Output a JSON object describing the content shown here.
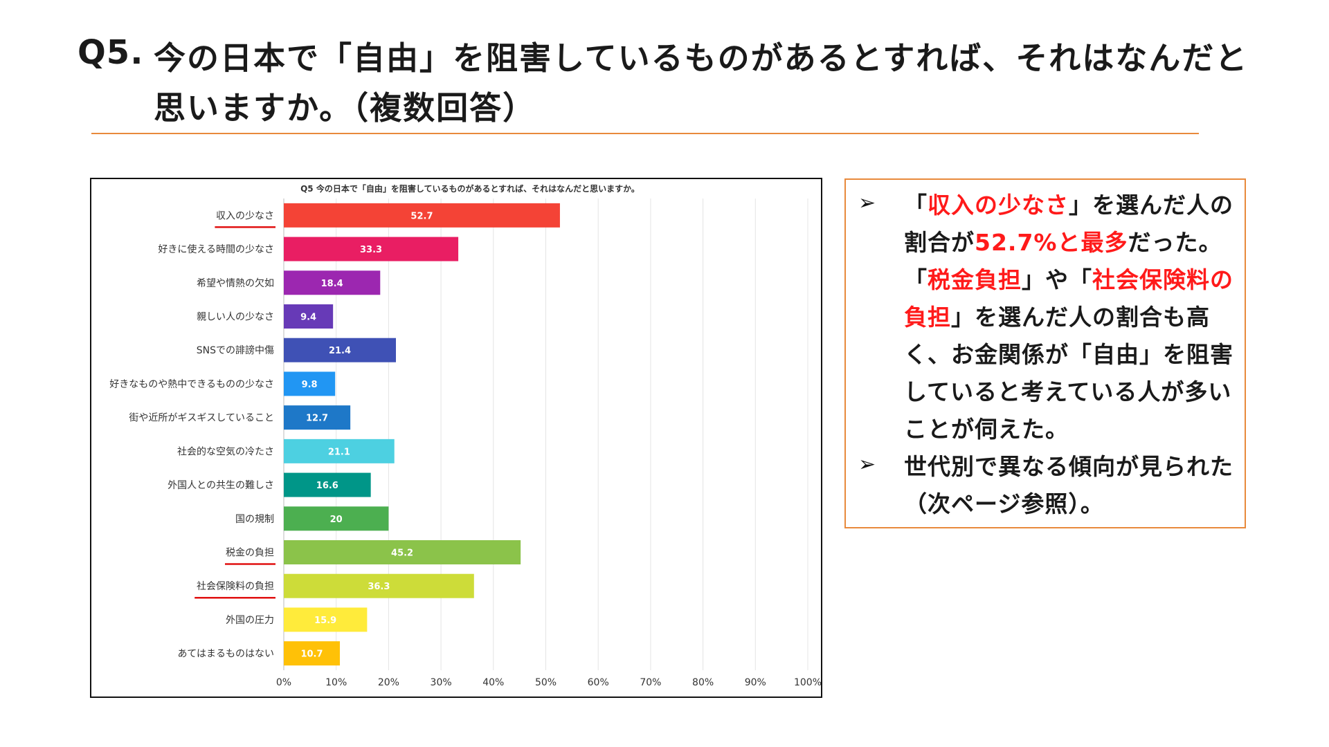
{
  "header": {
    "question_number": "Q5.",
    "question_text": "今の日本で「自由」を阻害しているものがあるとすれば、それはなんだと思いますか。（複数回答）"
  },
  "chart_data": {
    "type": "bar",
    "orientation": "horizontal",
    "title": "Q5 今の日本で「自由」を阻害しているものがあるとすれば、それはなんだと思いますか。",
    "xlabel": "",
    "ylabel": "",
    "xlim": [
      0,
      100
    ],
    "grid": true,
    "ticks": [
      "0%",
      "10%",
      "20%",
      "30%",
      "40%",
      "50%",
      "60%",
      "70%",
      "80%",
      "90%",
      "100%"
    ],
    "tick_values": [
      0,
      10,
      20,
      30,
      40,
      50,
      60,
      70,
      80,
      90,
      100
    ],
    "categories": [
      "収入の少なさ",
      "好きに使える時間の少なさ",
      "希望や情熱の欠如",
      "親しい人の少なさ",
      "SNSでの誹謗中傷",
      "好きなものや熱中できるものの少なさ",
      "街や近所がギスギスしていること",
      "社会的な空気の冷たさ",
      "外国人との共生の難しさ",
      "国の規制",
      "税金の負担",
      "社会保険料の負担",
      "外国の圧力",
      "あてはまるものはない"
    ],
    "values": [
      52.7,
      33.3,
      18.4,
      9.4,
      21.4,
      9.8,
      12.7,
      21.1,
      16.6,
      20,
      45.2,
      36.3,
      15.9,
      10.7
    ],
    "value_labels": [
      "52.7",
      "33.3",
      "18.4",
      "9.4",
      "21.4",
      "9.8",
      "12.7",
      "21.1",
      "16.6",
      "20",
      "45.2",
      "36.3",
      "15.9",
      "10.7"
    ],
    "colors": [
      "#f44336",
      "#e91e63",
      "#9c27b0",
      "#673ab7",
      "#3f51b5",
      "#2196f3",
      "#1e78c8",
      "#4dd0e1",
      "#009688",
      "#4caf50",
      "#8bc34a",
      "#cddc39",
      "#ffeb3b",
      "#ffc107"
    ],
    "underlined_categories": [
      "収入の少なさ",
      "税金の負担",
      "社会保険料の負担"
    ],
    "underline_color": "#e01010"
  },
  "notes": {
    "bullet": "➢",
    "item1": {
      "p1": "「",
      "h1": "収入の少なさ",
      "p2": "」を選んだ人の割合が",
      "h2": "52.7%と最多",
      "p3": "だった。「",
      "h3": "税金負担",
      "p4": "」や「",
      "h4": "社会保険料の負担",
      "p5": "」を選んだ人の割合も高く、お金関係が「自由」を阻害していると考えている人が多いことが伺えた。"
    },
    "item2": "世代別で異なる傾向が見られた（次ページ参照）。",
    "highlight_color": "#ff1a1a"
  }
}
